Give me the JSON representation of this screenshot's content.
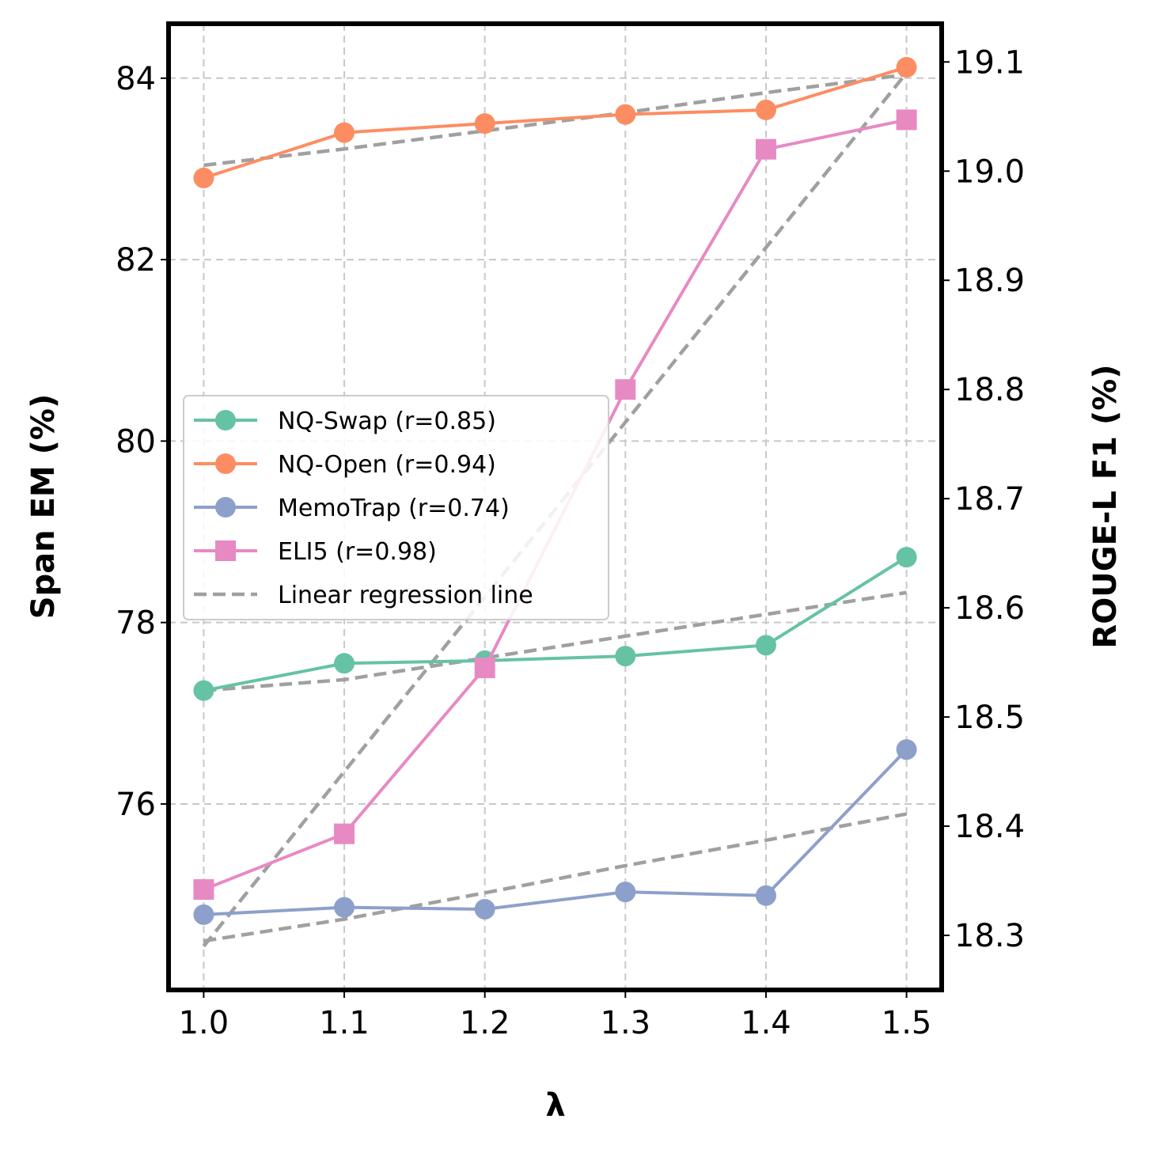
{
  "chart_data": {
    "type": "line",
    "x": [
      1.0,
      1.1,
      1.2,
      1.3,
      1.4,
      1.5
    ],
    "xlim": [
      0.975,
      1.525
    ],
    "xticks": [
      "1.0",
      "1.1",
      "1.2",
      "1.3",
      "1.4",
      "1.5"
    ],
    "xlabel": "λ",
    "ylabel_left": "Span EM (%)",
    "ylabel_right": "ROUGE-L F1 (%)",
    "ylim_left": [
      73.95,
      84.6
    ],
    "ylim_right": [
      18.25,
      19.135
    ],
    "yticks_left": [
      "76",
      "78",
      "80",
      "82",
      "84"
    ],
    "yticks_left_values": [
      76,
      78,
      80,
      82,
      84
    ],
    "yticks_right": [
      "18.3",
      "18.4",
      "18.5",
      "18.6",
      "18.7",
      "18.8",
      "18.9",
      "19.0",
      "19.1"
    ],
    "yticks_right_values": [
      18.3,
      18.4,
      18.5,
      18.6,
      18.7,
      18.8,
      18.9,
      19.0,
      19.1
    ],
    "grid": true,
    "legend_position": "center-left",
    "series": [
      {
        "name": "NQ-Swap",
        "label": "NQ-Swap  (r=0.85)",
        "axis": "left",
        "marker": "circle",
        "color": "#66c2a5",
        "values": [
          77.25,
          77.55,
          77.58,
          77.63,
          77.75,
          78.72
        ],
        "regression": [
          77.25,
          77.37,
          77.61,
          77.85,
          78.09,
          78.33
        ]
      },
      {
        "name": "NQ-Open",
        "label": "NQ-Open  (r=0.94)",
        "axis": "left",
        "marker": "circle",
        "color": "#fc8d62",
        "values": [
          82.9,
          83.4,
          83.5,
          83.6,
          83.65,
          84.12
        ],
        "regression": [
          83.04,
          83.22,
          83.42,
          83.62,
          83.84,
          84.04
        ]
      },
      {
        "name": "MemoTrap",
        "label": "MemoTrap  (r=0.74)",
        "axis": "left",
        "marker": "circle",
        "color": "#8da0cb",
        "values": [
          74.78,
          74.86,
          74.84,
          75.03,
          74.99,
          76.6
        ],
        "regression": [
          74.49,
          74.73,
          75.02,
          75.32,
          75.6,
          75.89
        ]
      },
      {
        "name": "ELI5",
        "label": "ELI5  (r=0.98)",
        "axis": "right",
        "marker": "square",
        "color": "#e78ac3",
        "values": [
          18.342,
          18.393,
          18.545,
          18.8,
          19.02,
          19.047
        ],
        "regression": [
          18.29,
          18.45,
          18.61,
          18.77,
          18.93,
          19.09
        ]
      }
    ],
    "regression_label": "Linear regression line",
    "regression_color": "#a0a0a0"
  }
}
